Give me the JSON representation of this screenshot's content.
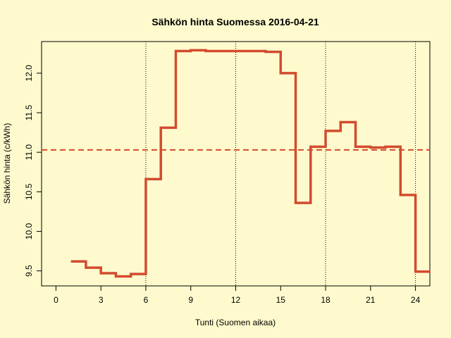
{
  "chart_data": {
    "type": "step",
    "title": "Sähkön hinta Suomessa 2016-04-21",
    "x_label": "Tunti (Suomen aikaa)",
    "y_label": "Sähkön hinta (c/kWh)",
    "x": [
      1,
      2,
      3,
      4,
      5,
      6,
      7,
      8,
      9,
      10,
      11,
      12,
      13,
      14,
      15,
      16,
      17,
      18,
      19,
      20,
      21,
      22,
      23,
      24,
      25
    ],
    "values": [
      9.62,
      9.54,
      9.47,
      9.43,
      9.46,
      10.66,
      11.31,
      12.28,
      12.29,
      12.28,
      12.28,
      12.28,
      12.28,
      12.27,
      12.0,
      10.36,
      11.07,
      11.27,
      11.38,
      11.07,
      11.06,
      11.07,
      10.46,
      9.49,
      9.49
    ],
    "color": "#d24b2f",
    "mean": 11.03,
    "vlines": [
      6,
      12,
      18,
      24
    ],
    "xlim": [
      -0.96,
      24.96
    ],
    "ylim": [
      9.31,
      12.4
    ],
    "xticks": [
      0,
      3,
      6,
      9,
      12,
      15,
      18,
      21,
      24
    ],
    "yticks": [
      9.5,
      {
        "value": 10,
        "label": "10.0"
      },
      10.5,
      {
        "value": 11,
        "label": "11.0"
      },
      11.5,
      {
        "value": 12,
        "label": "12.0"
      }
    ]
  }
}
